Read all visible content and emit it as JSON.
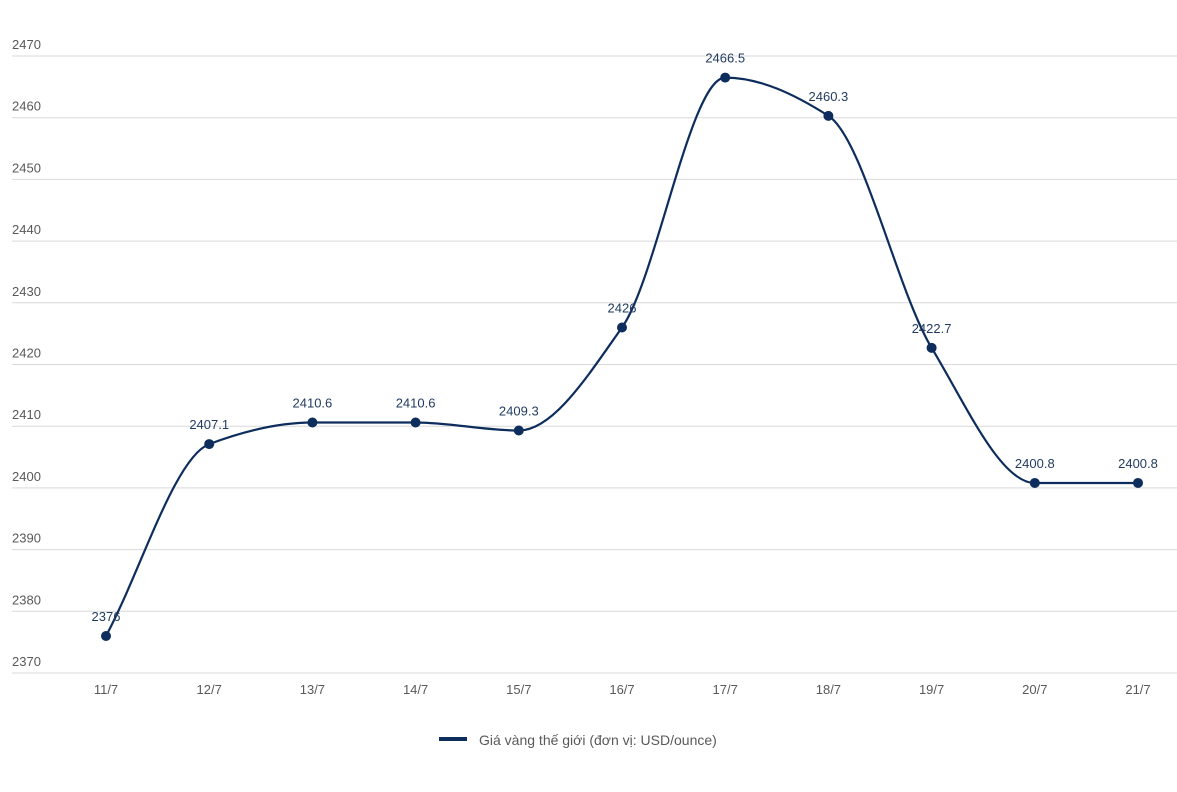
{
  "chart_data": {
    "type": "line",
    "title": "",
    "xlabel": "",
    "ylabel": "",
    "categories": [
      "11/7",
      "12/7",
      "13/7",
      "14/7",
      "15/7",
      "16/7",
      "17/7",
      "18/7",
      "19/7",
      "20/7",
      "21/7"
    ],
    "series": [
      {
        "name": "Giá vàng thế giới (đơn vị: USD/ounce)",
        "values": [
          2376,
          2407.1,
          2410.6,
          2410.6,
          2409.3,
          2426,
          2466.5,
          2460.3,
          2422.7,
          2400.8,
          2400.8
        ],
        "labels": [
          "2376",
          "2407.1",
          "2410.6",
          "2410.6",
          "2409.3",
          "2426",
          "2466.5",
          "2460.3",
          "2422.7",
          "2400.8",
          "2400.8"
        ],
        "color": "#0d2d5c"
      }
    ],
    "ylim": [
      2370,
      2470
    ],
    "yticks": [
      "2370",
      "2380",
      "2390",
      "2400",
      "2410",
      "2420",
      "2430",
      "2440",
      "2450",
      "2460",
      "2470"
    ],
    "grid": true,
    "legend": "bottom-center"
  }
}
